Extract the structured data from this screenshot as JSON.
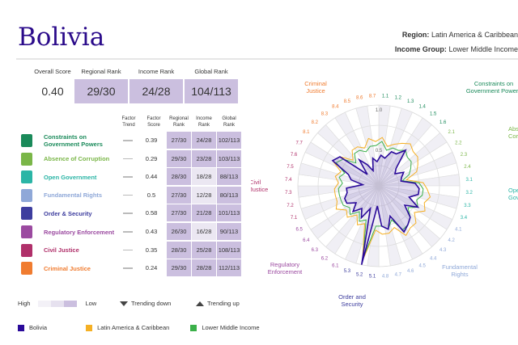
{
  "header": {
    "country": "Bolivia",
    "region_label": "Region:",
    "region": "Latin America & Caribbean",
    "income_label": "Income Group:",
    "income": "Lower Middle Income"
  },
  "summary": [
    {
      "label": "Overall Score",
      "value": "0.40"
    },
    {
      "label": "Regional Rank",
      "value": "29/30"
    },
    {
      "label": "Income Rank",
      "value": "24/28"
    },
    {
      "label": "Global Rank",
      "value": "104/113"
    }
  ],
  "table": {
    "headers": [
      "Factor Trend",
      "Factor Score",
      "Regional Rank",
      "Income Rank",
      "Global Rank"
    ],
    "rows": [
      {
        "icon": "courthouse-icon",
        "name": "Constraints on Government Powers",
        "color": "#1a8a5a",
        "trend": "—",
        "score": "0.39",
        "regional": "27/30",
        "income": "24/28",
        "global": "102/113",
        "shade": [
          "d",
          "d",
          "d"
        ]
      },
      {
        "icon": "money-bag-icon",
        "name": "Absence of Corruption",
        "color": "#7ab648",
        "trend": "—",
        "score": "0.29",
        "regional": "29/30",
        "income": "23/28",
        "global": "103/113",
        "shade": [
          "d",
          "d",
          "d"
        ]
      },
      {
        "icon": "door-icon",
        "name": "Open Government",
        "color": "#2bb5a6",
        "trend": "—",
        "score": "0.44",
        "regional": "28/30",
        "income": "18/28",
        "global": "88/113",
        "shade": [
          "d",
          "l",
          "d"
        ]
      },
      {
        "icon": "person-icon",
        "name": "Fundamental Rights",
        "color": "#8fa8d8",
        "trend": "—",
        "score": "0.5",
        "regional": "27/30",
        "income": "12/28",
        "global": "80/113",
        "shade": [
          "d",
          "l",
          "d"
        ]
      },
      {
        "icon": "police-icon",
        "name": "Order & Security",
        "color": "#3d3d9e",
        "trend": "—",
        "score": "0.58",
        "regional": "27/30",
        "income": "21/28",
        "global": "101/113",
        "shade": [
          "d",
          "d",
          "d"
        ]
      },
      {
        "icon": "official-icon",
        "name": "Regulatory Enforcement",
        "color": "#9b4aa0",
        "trend": "—",
        "score": "0.43",
        "regional": "26/30",
        "income": "16/28",
        "global": "90/113",
        "shade": [
          "d",
          "l",
          "d"
        ]
      },
      {
        "icon": "scales-icon",
        "name": "Civil Justice",
        "color": "#b0306a",
        "trend": "—",
        "score": "0.35",
        "regional": "28/30",
        "income": "25/28",
        "global": "108/113",
        "shade": [
          "d",
          "d",
          "d"
        ]
      },
      {
        "icon": "jail-icon",
        "name": "Criminal Justice",
        "color": "#f07c30",
        "trend": "—",
        "score": "0.24",
        "regional": "29/30",
        "income": "28/28",
        "global": "112/113",
        "shade": [
          "d",
          "d",
          "d"
        ]
      }
    ]
  },
  "legend": {
    "high": "High",
    "low": "Low",
    "trending_down": "Trending down",
    "trending_up": "Trending up",
    "series": [
      {
        "name": "Bolivia",
        "color": "#2a0a9a"
      },
      {
        "name": "Latin America & Caribbean",
        "color": "#f5b025"
      },
      {
        "name": "Lower Middle Income",
        "color": "#3bb04a"
      }
    ]
  },
  "chart_data": {
    "type": "radar",
    "rlim": [
      0,
      1
    ],
    "center_labels": [
      "1.0",
      "0.5"
    ],
    "factors": [
      {
        "name": "Constraints on Government Powers",
        "color": "#1a8a5a"
      },
      {
        "name": "Absence of Corruption",
        "color": "#7ab648"
      },
      {
        "name": "Open Government",
        "color": "#2bb5a6"
      },
      {
        "name": "Fundamental Rights",
        "color": "#8fa8d8"
      },
      {
        "name": "Order and Security",
        "color": "#3d3d9e"
      },
      {
        "name": "Regulatory Enforcement",
        "color": "#9b4aa0"
      },
      {
        "name": "Civil Justice",
        "color": "#b0306a"
      },
      {
        "name": "Criminal Justice",
        "color": "#f07c30"
      }
    ],
    "axes": [
      "1.1",
      "1.2",
      "1.3",
      "1.4",
      "1.5",
      "1.6",
      "2.1",
      "2.2",
      "2.3",
      "2.4",
      "3.1",
      "3.2",
      "3.3",
      "3.4",
      "4.1",
      "4.2",
      "4.3",
      "4.4",
      "4.5",
      "4.6",
      "4.7",
      "4.8",
      "5.1",
      "5.2",
      "5.3",
      "6.1",
      "6.2",
      "6.3",
      "6.4",
      "6.5",
      "7.1",
      "7.2",
      "7.3",
      "7.4",
      "7.5",
      "7.6",
      "7.7",
      "8.1",
      "8.2",
      "8.3",
      "8.4",
      "8.5",
      "8.6",
      "8.7"
    ],
    "series": [
      {
        "name": "Bolivia",
        "values": [
          0.38,
          0.35,
          0.45,
          0.45,
          0.55,
          0.3,
          0.25,
          0.35,
          0.3,
          0.28,
          0.45,
          0.5,
          0.5,
          0.4,
          0.55,
          0.4,
          0.55,
          0.6,
          0.65,
          0.4,
          0.55,
          0.5,
          0.25,
          1.0,
          0.3,
          0.45,
          0.35,
          0.45,
          0.35,
          0.45,
          0.45,
          0.4,
          0.4,
          0.2,
          0.35,
          0.4,
          0.65,
          0.6,
          0.2,
          0.4,
          0.3,
          0.2,
          0.35,
          0.3
        ]
      },
      {
        "name": "Latin America & Caribbean",
        "values": [
          0.6,
          0.5,
          0.55,
          0.6,
          0.65,
          0.6,
          0.6,
          0.55,
          0.5,
          0.35,
          0.55,
          0.6,
          0.65,
          0.6,
          0.65,
          0.55,
          0.65,
          0.65,
          0.7,
          0.55,
          0.6,
          0.6,
          0.55,
          0.95,
          0.5,
          0.55,
          0.45,
          0.55,
          0.5,
          0.6,
          0.55,
          0.55,
          0.55,
          0.5,
          0.55,
          0.5,
          0.65,
          0.6,
          0.45,
          0.55,
          0.55,
          0.5,
          0.6,
          0.55
        ]
      },
      {
        "name": "Lower Middle Income",
        "values": [
          0.55,
          0.45,
          0.5,
          0.5,
          0.55,
          0.5,
          0.5,
          0.45,
          0.4,
          0.3,
          0.5,
          0.55,
          0.55,
          0.5,
          0.55,
          0.45,
          0.55,
          0.6,
          0.62,
          0.45,
          0.55,
          0.5,
          0.5,
          0.92,
          0.45,
          0.5,
          0.4,
          0.5,
          0.45,
          0.5,
          0.5,
          0.5,
          0.5,
          0.45,
          0.5,
          0.45,
          0.6,
          0.55,
          0.4,
          0.5,
          0.5,
          0.45,
          0.5,
          0.5
        ]
      }
    ]
  }
}
